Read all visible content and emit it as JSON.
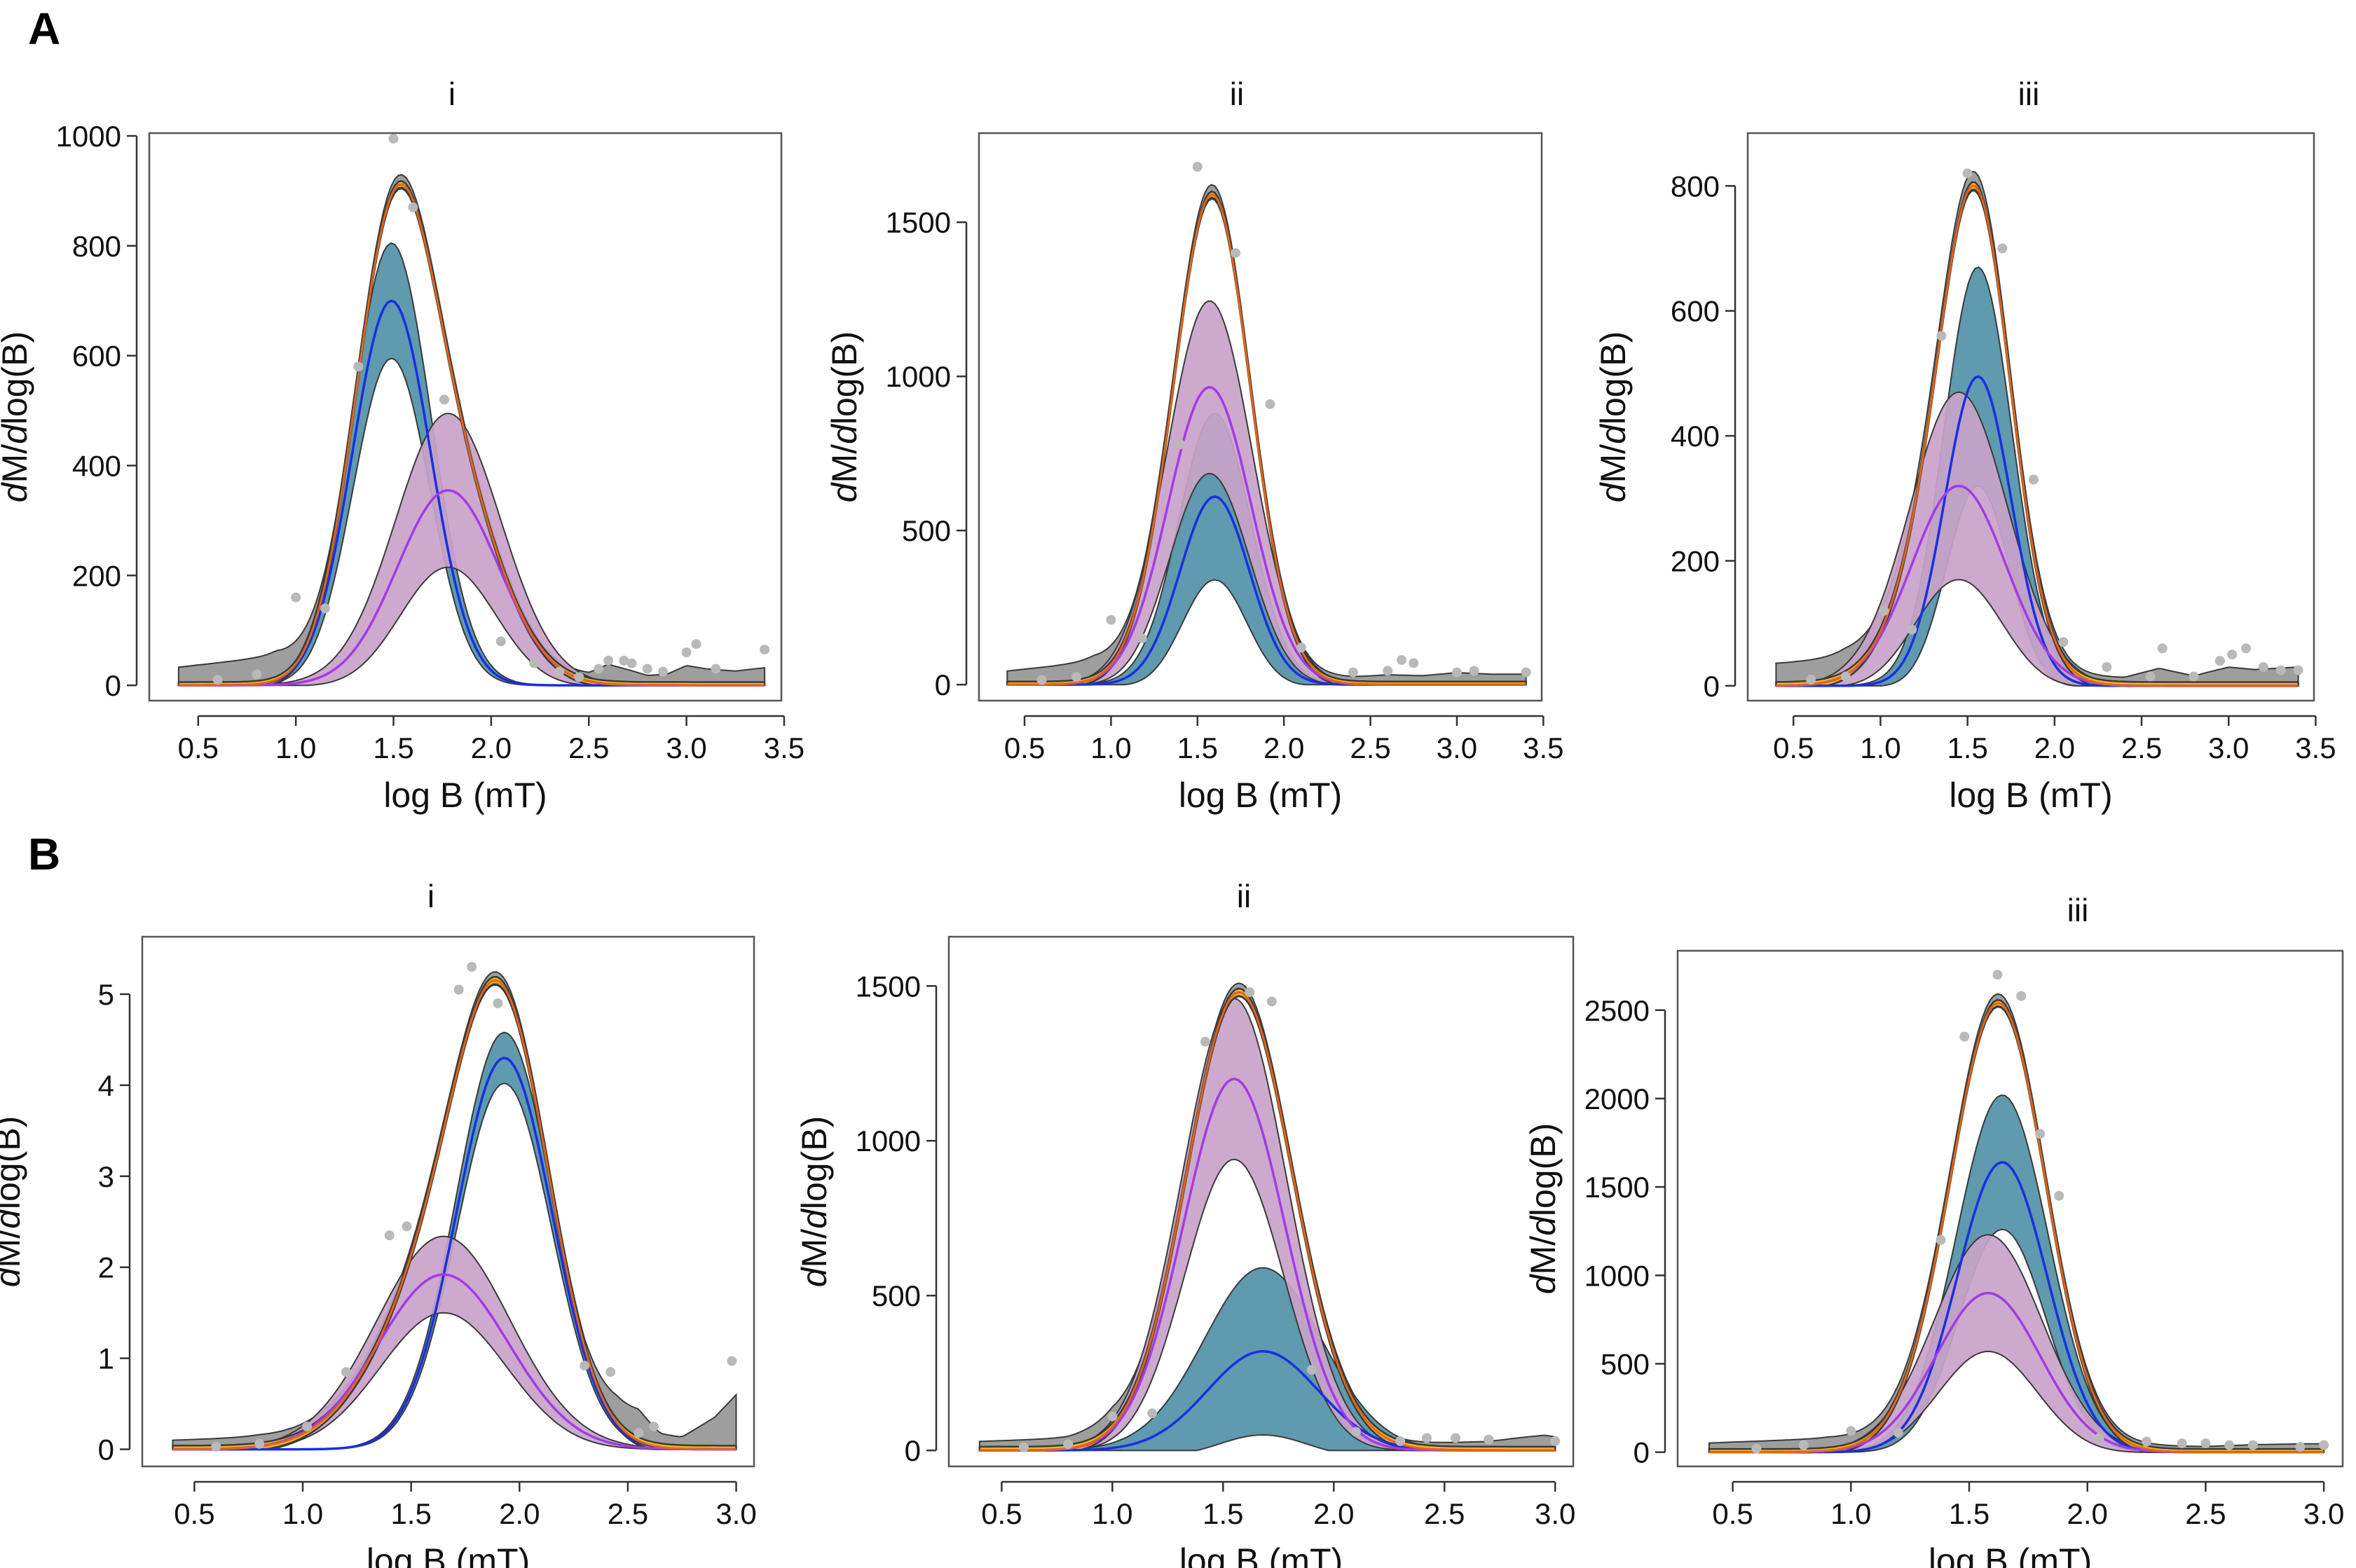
{
  "panel_labels": [
    "A",
    "B"
  ],
  "colors": {
    "frame": "#555555",
    "data_points": "#b9b9b9",
    "envelope_fill": "#9e9e9e",
    "sum_fill": "#f2b820",
    "sum_line": "#e0661a",
    "comp1_fill": "#5f9aae",
    "comp1_line": "#1a2fe0",
    "comp2_fill": "#c9a3c9",
    "comp2_line": "#a23be6"
  },
  "chart_data": [
    {
      "panel": "A",
      "subtitle": "i",
      "type": "line",
      "xlabel": "log B (mT)",
      "ylabel": "dM/dlog(B)",
      "xlim": [
        0.35,
        3.45
      ],
      "ylim": [
        -10,
        1000
      ],
      "xticks": [
        0.5,
        1.0,
        1.5,
        2.0,
        2.5,
        3.0,
        3.5
      ],
      "yticks": [
        0,
        200,
        400,
        600,
        800,
        1000
      ],
      "x_range": [
        0.4,
        3.4
      ],
      "envelope_half_width": 8,
      "sum_half_width": 6,
      "comp1": {
        "mu": 1.49,
        "sigma": 0.2,
        "amp": 700,
        "band": 105
      },
      "comp2": {
        "mu": 1.78,
        "sigma": 0.26,
        "amp": 355,
        "band": 140
      },
      "sum_peak": [
        1.54,
        912
      ],
      "points": [
        [
          1.5,
          995
        ],
        [
          1.6,
          870
        ],
        [
          1.32,
          580
        ],
        [
          1.76,
          520
        ],
        [
          1.0,
          160
        ],
        [
          1.15,
          140
        ],
        [
          2.05,
          80
        ],
        [
          2.22,
          40
        ],
        [
          2.35,
          25
        ],
        [
          2.45,
          15
        ],
        [
          2.55,
          30
        ],
        [
          2.6,
          45
        ],
        [
          2.68,
          45
        ],
        [
          2.72,
          40
        ],
        [
          2.8,
          30
        ],
        [
          2.88,
          25
        ],
        [
          3.0,
          60
        ],
        [
          3.05,
          75
        ],
        [
          3.15,
          30
        ],
        [
          3.4,
          65
        ],
        [
          0.6,
          10
        ],
        [
          0.8,
          20
        ]
      ],
      "residual": [
        [
          0.4,
          25
        ],
        [
          0.9,
          45
        ],
        [
          1.2,
          12
        ],
        [
          2.1,
          5
        ],
        [
          2.3,
          2
        ],
        [
          2.5,
          8
        ],
        [
          2.6,
          28
        ],
        [
          2.7,
          20
        ],
        [
          2.8,
          10
        ],
        [
          2.9,
          12
        ],
        [
          3.0,
          28
        ],
        [
          3.1,
          22
        ],
        [
          3.25,
          18
        ],
        [
          3.4,
          24
        ]
      ]
    },
    {
      "panel": "A",
      "subtitle": "ii",
      "type": "line",
      "xlabel": "log B (mT)",
      "ylabel": "dM/dlog(B)",
      "xlim": [
        0.35,
        3.45
      ],
      "ylim": [
        -20,
        1780
      ],
      "xticks": [
        0.5,
        1.0,
        1.5,
        2.0,
        2.5,
        3.0,
        3.5
      ],
      "yticks": [
        0,
        500,
        1000,
        1500
      ],
      "x_range": [
        0.4,
        3.4
      ],
      "envelope_half_width": 14,
      "sum_half_width": 10,
      "comp1": {
        "mu": 1.6,
        "sigma": 0.2,
        "amp": 610,
        "band": 270
      },
      "comp2": {
        "mu": 1.57,
        "sigma": 0.24,
        "amp": 965,
        "band": 280
      },
      "sum_peak": [
        1.58,
        1590
      ],
      "points": [
        [
          1.5,
          1680
        ],
        [
          1.72,
          1400
        ],
        [
          1.4,
          780
        ],
        [
          1.92,
          910
        ],
        [
          1.0,
          210
        ],
        [
          1.18,
          150
        ],
        [
          2.1,
          120
        ],
        [
          2.4,
          40
        ],
        [
          2.6,
          45
        ],
        [
          2.68,
          80
        ],
        [
          2.75,
          70
        ],
        [
          3.0,
          40
        ],
        [
          3.1,
          45
        ],
        [
          3.4,
          40
        ],
        [
          0.6,
          15
        ],
        [
          0.8,
          25
        ]
      ],
      "residual": [
        [
          0.4,
          30
        ],
        [
          0.9,
          60
        ],
        [
          1.2,
          25
        ],
        [
          2.1,
          8
        ],
        [
          2.4,
          10
        ],
        [
          2.6,
          18
        ],
        [
          2.8,
          15
        ],
        [
          3.0,
          25
        ],
        [
          3.2,
          20
        ],
        [
          3.4,
          20
        ]
      ]
    },
    {
      "panel": "A",
      "subtitle": "iii",
      "type": "line",
      "xlabel": "log B (mT)",
      "ylabel": "dM/dlog(B)",
      "xlim": [
        0.35,
        3.45
      ],
      "ylim": [
        -8,
        880
      ],
      "xticks": [
        0.5,
        1.0,
        1.5,
        2.0,
        2.5,
        3.0,
        3.5
      ],
      "yticks": [
        0,
        200,
        400,
        600,
        800
      ],
      "x_range": [
        0.4,
        3.4
      ],
      "envelope_half_width": 8,
      "sum_half_width": 6,
      "comp1": {
        "mu": 1.56,
        "sigma": 0.19,
        "amp": 495,
        "band": 175
      },
      "comp2": {
        "mu": 1.45,
        "sigma": 0.27,
        "amp": 320,
        "band": 150
      },
      "sum_peak": [
        1.52,
        800
      ],
      "points": [
        [
          1.5,
          820
        ],
        [
          1.7,
          700
        ],
        [
          1.35,
          560
        ],
        [
          1.88,
          330
        ],
        [
          1.02,
          120
        ],
        [
          1.18,
          90
        ],
        [
          2.05,
          70
        ],
        [
          2.3,
          30
        ],
        [
          2.55,
          15
        ],
        [
          2.62,
          60
        ],
        [
          2.8,
          15
        ],
        [
          2.95,
          40
        ],
        [
          3.02,
          50
        ],
        [
          3.1,
          60
        ],
        [
          3.2,
          30
        ],
        [
          3.3,
          25
        ],
        [
          3.4,
          25
        ],
        [
          0.6,
          10
        ],
        [
          0.8,
          15
        ]
      ],
      "residual": [
        [
          0.4,
          28
        ],
        [
          0.8,
          35
        ],
        [
          1.1,
          22
        ],
        [
          2.1,
          5
        ],
        [
          2.4,
          5
        ],
        [
          2.6,
          20
        ],
        [
          2.8,
          8
        ],
        [
          3.0,
          22
        ],
        [
          3.15,
          18
        ],
        [
          3.4,
          22
        ]
      ]
    },
    {
      "panel": "B",
      "subtitle": "i",
      "type": "line",
      "xlabel": "log B (mT)",
      "ylabel": "dM/dlog(B)",
      "xlim": [
        0.35,
        3.05
      ],
      "ylim": [
        -0.08,
        5.6
      ],
      "xticks": [
        0.5,
        1.0,
        1.5,
        2.0,
        2.5,
        3.0
      ],
      "yticks": [
        0,
        1,
        2,
        3,
        4,
        5
      ],
      "x_range": [
        0.4,
        3.0
      ],
      "envelope_half_width": 0.05,
      "sum_half_width": 0.04,
      "comp1": {
        "mu": 1.93,
        "sigma": 0.22,
        "amp": 4.3,
        "band": 0.28
      },
      "comp2": {
        "mu": 1.65,
        "sigma": 0.3,
        "amp": 1.92,
        "band": 0.42
      },
      "sum_peak": [
        1.83,
        5.15
      ],
      "points": [
        [
          1.78,
          5.3
        ],
        [
          1.72,
          5.05
        ],
        [
          1.9,
          4.9
        ],
        [
          1.4,
          2.35
        ],
        [
          1.48,
          2.45
        ],
        [
          1.02,
          0.25
        ],
        [
          1.2,
          0.85
        ],
        [
          2.3,
          0.92
        ],
        [
          2.42,
          0.85
        ],
        [
          2.55,
          0.18
        ],
        [
          2.62,
          0.25
        ],
        [
          2.98,
          0.97
        ],
        [
          0.6,
          0.03
        ],
        [
          0.8,
          0.06
        ]
      ],
      "residual": [
        [
          0.4,
          0.05
        ],
        [
          0.8,
          0.08
        ],
        [
          1.2,
          0.05
        ],
        [
          2.3,
          0.04
        ],
        [
          2.45,
          0.25
        ],
        [
          2.55,
          0.3
        ],
        [
          2.65,
          0.1
        ],
        [
          2.75,
          0.08
        ],
        [
          2.9,
          0.3
        ],
        [
          3.0,
          0.55
        ]
      ]
    },
    {
      "panel": "B",
      "subtitle": "ii",
      "type": "line",
      "xlabel": "log B (mT)",
      "ylabel": "dM/dlog(B)",
      "xlim": [
        0.35,
        3.05
      ],
      "ylim": [
        -20,
        1650
      ],
      "xticks": [
        0.5,
        1.0,
        1.5,
        2.0,
        2.5,
        3.0
      ],
      "yticks": [
        0,
        500,
        1000,
        1500
      ],
      "x_range": [
        0.4,
        3.0
      ],
      "envelope_half_width": 14,
      "sum_half_width": 12,
      "comp1": {
        "mu": 1.68,
        "sigma": 0.25,
        "amp": 320,
        "band": 270
      },
      "comp2": {
        "mu": 1.55,
        "sigma": 0.23,
        "amp": 1200,
        "band": 260
      },
      "sum_peak": [
        1.58,
        1480
      ],
      "points": [
        [
          1.62,
          1480
        ],
        [
          1.72,
          1450
        ],
        [
          1.42,
          1320
        ],
        [
          1.9,
          260
        ],
        [
          1.0,
          110
        ],
        [
          1.18,
          120
        ],
        [
          2.1,
          60
        ],
        [
          2.3,
          30
        ],
        [
          2.42,
          40
        ],
        [
          2.55,
          40
        ],
        [
          2.7,
          35
        ],
        [
          3.0,
          30
        ],
        [
          0.6,
          10
        ],
        [
          0.8,
          20
        ]
      ],
      "residual": [
        [
          0.4,
          15
        ],
        [
          0.8,
          25
        ],
        [
          1.0,
          50
        ],
        [
          1.2,
          20
        ],
        [
          2.3,
          5
        ],
        [
          2.5,
          10
        ],
        [
          2.7,
          15
        ],
        [
          2.85,
          28
        ],
        [
          2.95,
          35
        ],
        [
          3.0,
          30
        ]
      ]
    },
    {
      "panel": "B",
      "subtitle": "iii",
      "type": "line",
      "xlabel": "log B (mT)",
      "ylabel": "dM/dlog(B)",
      "xlim": [
        0.35,
        3.05
      ],
      "ylim": [
        -25,
        2820
      ],
      "xticks": [
        0.5,
        1.0,
        1.5,
        2.0,
        2.5,
        3.0
      ],
      "yticks": [
        0,
        500,
        1000,
        1500,
        2000,
        2500
      ],
      "x_range": [
        0.4,
        3.0
      ],
      "envelope_half_width": 22,
      "sum_half_width": 18,
      "comp1": {
        "mu": 1.64,
        "sigma": 0.19,
        "amp": 1640,
        "band": 380
      },
      "comp2": {
        "mu": 1.58,
        "sigma": 0.22,
        "amp": 900,
        "band": 330
      },
      "sum_peak": [
        1.63,
        2540
      ],
      "points": [
        [
          1.62,
          2700
        ],
        [
          1.72,
          2580
        ],
        [
          1.48,
          2350
        ],
        [
          1.8,
          1800
        ],
        [
          1.88,
          1450
        ],
        [
          1.38,
          1200
        ],
        [
          1.0,
          120
        ],
        [
          1.2,
          110
        ],
        [
          2.05,
          80
        ],
        [
          2.25,
          60
        ],
        [
          2.4,
          50
        ],
        [
          2.5,
          50
        ],
        [
          2.6,
          40
        ],
        [
          2.7,
          40
        ],
        [
          2.9,
          30
        ],
        [
          3.0,
          40
        ],
        [
          0.6,
          20
        ],
        [
          0.8,
          40
        ]
      ],
      "residual": [
        [
          0.4,
          30
        ],
        [
          0.9,
          55
        ],
        [
          1.2,
          40
        ],
        [
          2.2,
          15
        ],
        [
          2.5,
          10
        ],
        [
          2.7,
          20
        ],
        [
          2.9,
          25
        ],
        [
          3.0,
          25
        ]
      ]
    }
  ]
}
